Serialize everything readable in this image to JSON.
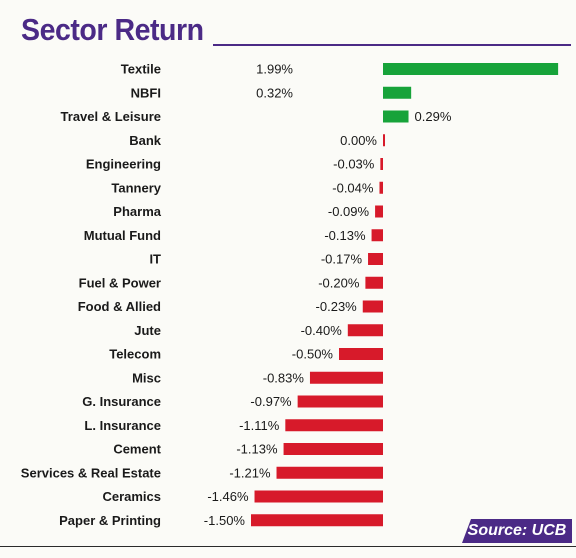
{
  "title": "Sector Return",
  "source": "Source: UCB",
  "colors": {
    "title": "#4b2a86",
    "positive": "#17a33a",
    "negative": "#d71a2a",
    "source_bg": "#4b2a86"
  },
  "chart_data": {
    "type": "bar",
    "orientation": "horizontal",
    "title": "Sector Return",
    "xlabel": "",
    "ylabel": "",
    "grid": false,
    "categories": [
      "Textile",
      "NBFI",
      "Travel & Leisure",
      "Bank",
      "Engineering",
      "Tannery",
      "Pharma",
      "Mutual Fund",
      "IT",
      "Fuel & Power",
      "Food & Allied",
      "Jute",
      "Telecom",
      "Misc",
      "G. Insurance",
      "L. Insurance",
      "Cement",
      "Services & Real Estate",
      "Ceramics",
      "Paper & Printing"
    ],
    "values": [
      1.99,
      0.32,
      0.29,
      0.0,
      -0.03,
      -0.04,
      -0.09,
      -0.13,
      -0.17,
      -0.2,
      -0.23,
      -0.4,
      -0.5,
      -0.83,
      -0.97,
      -1.11,
      -1.13,
      -1.21,
      -1.46,
      -1.5
    ],
    "labels": [
      "1.99%",
      "0.32%",
      "0.29%",
      "0.00%",
      "-0.03%",
      "-0.04%",
      "-0.09%",
      "-0.13%",
      "-0.17%",
      "-0.20%",
      "-0.23%",
      "-0.40%",
      "-0.50%",
      "-0.83%",
      "-0.97%",
      "-1.11%",
      "-1.13%",
      "-1.21%",
      "-1.46%",
      "-1.50%"
    ]
  }
}
